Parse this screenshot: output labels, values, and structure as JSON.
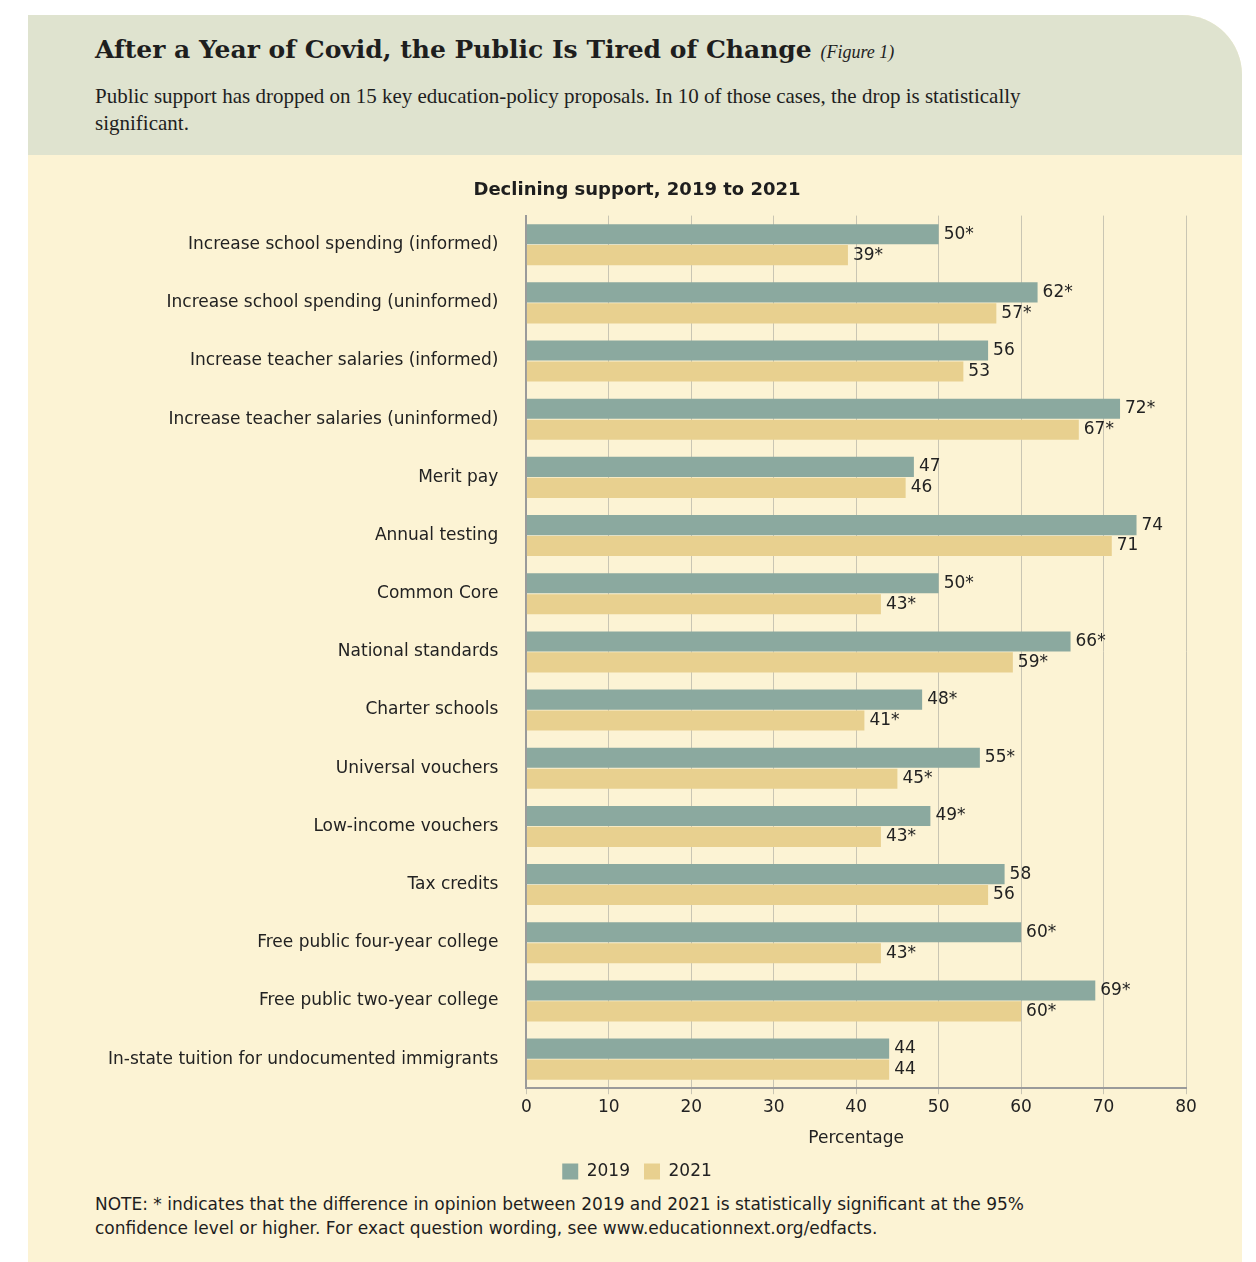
{
  "chart_data": {
    "type": "bar",
    "orientation": "horizontal",
    "title": "After a Year of Covid, the Public Is Tired of Change",
    "figure": "(Figure 1)",
    "subtitle": "Public support has dropped on 15 key education-policy proposals. In 10 of those cases, the drop is statistically significant.",
    "plot_title": "Declining support, 2019 to 2021",
    "x_label": "Percentage",
    "note": "NOTE: * indicates that the difference in opinion between 2019 and 2021 is statistically significant at the 95% confidence level or higher. For exact question wording, see www.educationnext.org/edfacts.",
    "categories": [
      "Increase school spending (informed)",
      "Increase school spending (uninformed)",
      "Increase teacher salaries (informed)",
      "Increase teacher salaries (uninformed)",
      "Merit pay",
      "Annual testing",
      "Common Core",
      "National standards",
      "Charter schools",
      "Universal vouchers",
      "Low-income vouchers",
      "Tax credits",
      "Free public four-year college",
      "Free public two-year college",
      "In-state tuition for undocumented immigrants"
    ],
    "series": [
      {
        "name": "2019",
        "color": "#8ba99f",
        "values": [
          50,
          62,
          56,
          72,
          47,
          74,
          50,
          66,
          48,
          55,
          49,
          58,
          60,
          69,
          44
        ],
        "value_labels": [
          "50*",
          "62*",
          "56",
          "72*",
          "47",
          "74",
          "50*",
          "66*",
          "48*",
          "55*",
          "49*",
          "58",
          "60*",
          "69*",
          "44"
        ]
      },
      {
        "name": "2021",
        "color": "#e8d08f",
        "values": [
          39,
          57,
          53,
          67,
          46,
          71,
          43,
          59,
          41,
          45,
          43,
          56,
          43,
          60,
          44
        ],
        "value_labels": [
          "39*",
          "57*",
          "53",
          "67*",
          "46",
          "71",
          "43*",
          "59*",
          "41*",
          "45*",
          "43*",
          "56",
          "43*",
          "60*",
          "44"
        ]
      }
    ],
    "xlim": [
      0,
      80
    ],
    "xticks": [
      0,
      10,
      20,
      30,
      40,
      50,
      60,
      70,
      80
    ],
    "grid": true,
    "legend": "bottom",
    "data_labels": true
  }
}
